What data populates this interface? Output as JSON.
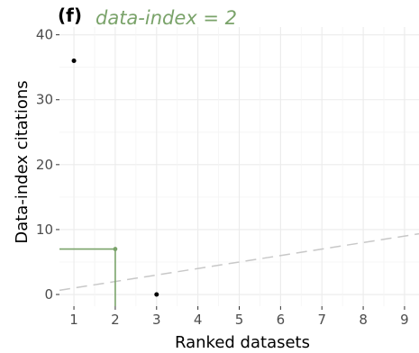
{
  "chart_data": {
    "type": "scatter",
    "panel_label": "(f)",
    "annotation": "data-index = 2",
    "xlabel": "Ranked datasets",
    "ylabel": "Data-index citations",
    "xlim": [
      0.65,
      9.35
    ],
    "ylim": [
      -1.8,
      41.2
    ],
    "xticks": [
      1,
      2,
      3,
      4,
      5,
      6,
      7,
      8,
      9
    ],
    "yticks": [
      0,
      10,
      20,
      30,
      40
    ],
    "highlight_x_tick": 2,
    "grid": true,
    "points": [
      {
        "x": 1,
        "y": 36
      },
      {
        "x": 2,
        "y": 7
      },
      {
        "x": 3,
        "y": 0
      }
    ],
    "highlight_point_index": 1,
    "reference_line": {
      "style": "dashed",
      "slope": 1,
      "intercept": 0
    },
    "index_value": 2,
    "colors": {
      "accent": "#7aa36a",
      "point": "#000000",
      "grid": "#ebebeb",
      "reference": "#c8c8c8"
    }
  }
}
